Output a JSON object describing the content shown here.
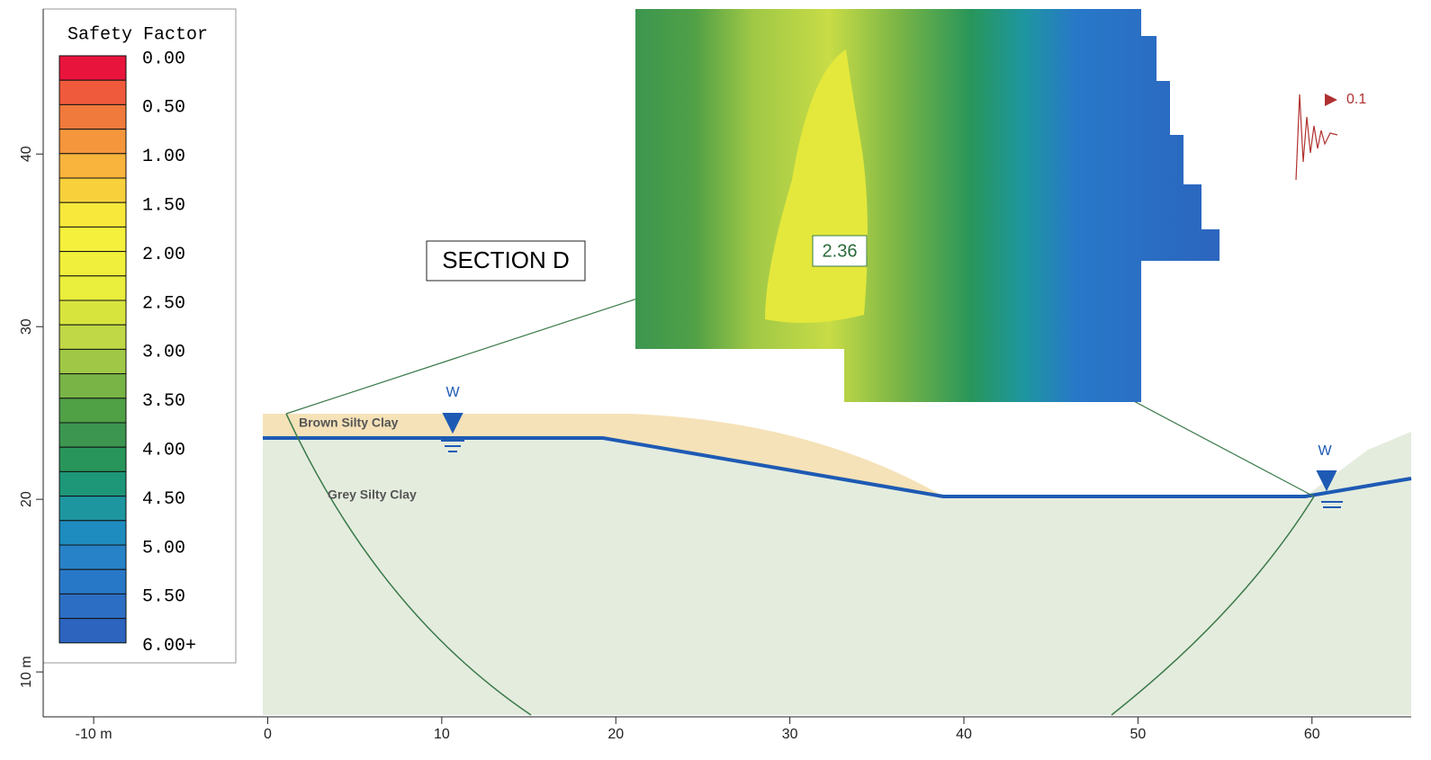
{
  "legend": {
    "title": "Safety Factor",
    "levels": [
      {
        "value": 0,
        "label": "0.00"
      },
      {
        "value": 0.5,
        "label": "0.50"
      },
      {
        "value": 1,
        "label": "1.00"
      },
      {
        "value": 1.5,
        "label": "1.50"
      },
      {
        "value": 2,
        "label": "2.00"
      },
      {
        "value": 2.5,
        "label": "2.50"
      },
      {
        "value": 3,
        "label": "3.00"
      },
      {
        "value": 3.5,
        "label": "3.50"
      },
      {
        "value": 4,
        "label": "4.00"
      },
      {
        "value": 4.5,
        "label": "4.50"
      },
      {
        "value": 5,
        "label": "5.00"
      },
      {
        "value": 5.5,
        "label": "5.50"
      },
      {
        "value": 6,
        "label": "6.00+"
      }
    ],
    "colors": [
      "#e8143c",
      "#f05a3c",
      "#f07a3c",
      "#f5963c",
      "#f8b43c",
      "#f8d03c",
      "#f8e83c",
      "#f5f03c",
      "#f0f03c",
      "#eaee3c",
      "#d8e43e",
      "#c0d846",
      "#a0c846",
      "#78b446",
      "#50a046",
      "#3c9650",
      "#28965a",
      "#1e9678",
      "#1e96a0",
      "#1e8cbe",
      "#2882c8",
      "#2878c8",
      "#2c6ec3",
      "#2c64be"
    ]
  },
  "axes": {
    "xlim": [
      -12.9,
      65.7
    ],
    "xticks": [
      {
        "value": -10,
        "label": "-10 m"
      },
      0,
      10,
      20,
      30,
      40,
      50,
      60
    ],
    "ylim": [
      7.4,
      48.4
    ],
    "yticks": [
      {
        "value": 10,
        "label": "10 m"
      },
      20,
      30,
      40
    ]
  },
  "section_label": "SECTION D",
  "min_safety_factor": 2.36,
  "materials": [
    "Brown Silty Clay",
    "Grey Silty Clay"
  ],
  "water_labels": [
    "W",
    "W"
  ],
  "seismic_coefficient": 0.1
}
